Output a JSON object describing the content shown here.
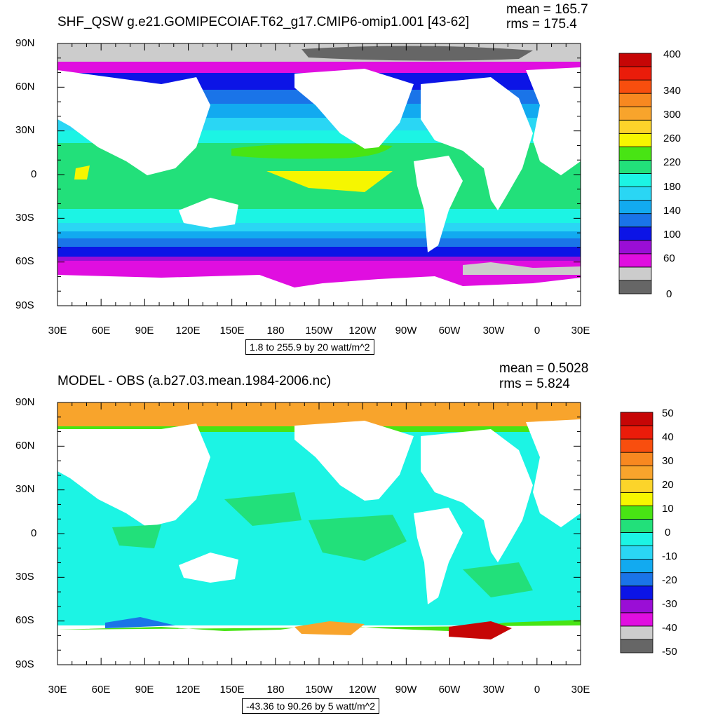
{
  "panels": [
    {
      "title": "SHF_QSW g.e21.GOMIPECOIAF.T62_g17.CMIP6-omip1.001 [43-62]",
      "mean_label": "mean = 165.7",
      "rms_label": "rms = 175.4",
      "range_label": "1.8 to 255.9 by 20 watt/m^2"
    },
    {
      "title": "MODEL - OBS (a.b27.03.mean.1984-2006.nc)",
      "mean_label": "mean = 0.5028",
      "rms_label": "rms = 5.824",
      "range_label": "-43.36 to 90.26 by 5 watt/m^2"
    }
  ],
  "chart_data": [
    {
      "type": "heatmap",
      "title": "SHF_QSW g.e21.GOMIPECOIAF.T62_g17.CMIP6-omip1.001 [43-62]",
      "stats": {
        "mean": 165.7,
        "rms": 175.4
      },
      "range": {
        "min": 1.8,
        "max": 255.9,
        "interval": 20,
        "units": "watt/m^2"
      },
      "x_ticks": [
        "30E",
        "60E",
        "90E",
        "120E",
        "150E",
        "180",
        "150W",
        "120W",
        "90W",
        "60W",
        "30W",
        "0",
        "30E"
      ],
      "y_ticks": [
        "90N",
        "60N",
        "30N",
        "0",
        "30S",
        "60S",
        "90S"
      ],
      "colorbar": {
        "colors": [
          "#666666",
          "#cccccc",
          "#e00ee0",
          "#9a0ed6",
          "#0c14e6",
          "#1a74e8",
          "#12aaf0",
          "#2ad6f4",
          "#1cf4e4",
          "#22e07a",
          "#48e414",
          "#f6f600",
          "#fcd42a",
          "#f8a42c",
          "#f88820",
          "#f84e0e",
          "#ea1c0a",
          "#c60606"
        ],
        "tick_labels": [
          "0",
          "60",
          "100",
          "140",
          "180",
          "220",
          "260",
          "300",
          "340",
          "400"
        ],
        "tick_edges": [
          0,
          4,
          6,
          8,
          10,
          12,
          14,
          15,
          16,
          18
        ]
      }
    },
    {
      "type": "heatmap",
      "title": "MODEL - OBS (a.b27.03.mean.1984-2006.nc)",
      "stats": {
        "mean": 0.5028,
        "rms": 5.824
      },
      "range": {
        "min": -43.36,
        "max": 90.26,
        "interval": 5,
        "units": "watt/m^2"
      },
      "x_ticks": [
        "30E",
        "60E",
        "90E",
        "120E",
        "150E",
        "180",
        "150W",
        "120W",
        "90W",
        "60W",
        "30W",
        "0",
        "30E"
      ],
      "y_ticks": [
        "90N",
        "60N",
        "30N",
        "0",
        "30S",
        "60S",
        "90S"
      ],
      "colorbar": {
        "colors": [
          "#666666",
          "#cccccc",
          "#e00ee0",
          "#9a0ed6",
          "#0c14e6",
          "#1a74e8",
          "#12aaf0",
          "#2ad6f4",
          "#1cf4e4",
          "#22e07a",
          "#48e414",
          "#f6f600",
          "#fcd42a",
          "#f8a42c",
          "#f88820",
          "#f84e0e",
          "#ea1c0a",
          "#c60606"
        ],
        "tick_labels": [
          "-50",
          "-40",
          "-30",
          "-20",
          "-10",
          "0",
          "10",
          "20",
          "30",
          "40",
          "50"
        ],
        "tick_edges": [
          0,
          1,
          3,
          5,
          7,
          9,
          11,
          13,
          15,
          17,
          18
        ]
      }
    }
  ]
}
